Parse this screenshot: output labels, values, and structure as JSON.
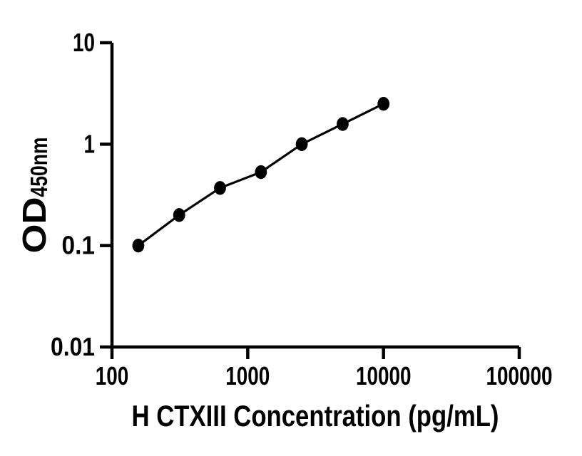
{
  "figure": {
    "background": "#ffffff"
  },
  "chart_data": {
    "type": "scatter",
    "title": "",
    "xlabel": "H CTXIII Concentration (pg/mL)",
    "ylabel_main": "OD",
    "ylabel_sub": "450nm",
    "x_scale": "log10",
    "y_scale": "log10",
    "xlim": [
      100,
      100000
    ],
    "ylim": [
      0.01,
      10
    ],
    "x_ticks": [
      100,
      1000,
      10000,
      100000
    ],
    "x_tick_labels": [
      "100",
      "1000",
      "10000",
      "100000"
    ],
    "y_ticks": [
      0.01,
      0.1,
      1,
      10
    ],
    "y_tick_labels": [
      "0.01",
      "0.1",
      "1",
      "10"
    ],
    "points": [
      {
        "x": 156.25,
        "y": 0.1
      },
      {
        "x": 312.5,
        "y": 0.2
      },
      {
        "x": 625,
        "y": 0.37
      },
      {
        "x": 1250,
        "y": 0.53
      },
      {
        "x": 2500,
        "y": 1.0
      },
      {
        "x": 5000,
        "y": 1.58
      },
      {
        "x": 10000,
        "y": 2.5
      }
    ],
    "line_color": "#000000",
    "marker_color": "#000000",
    "axis_color": "#000000",
    "grid": false,
    "legend": false,
    "ticks_direction": "out"
  }
}
